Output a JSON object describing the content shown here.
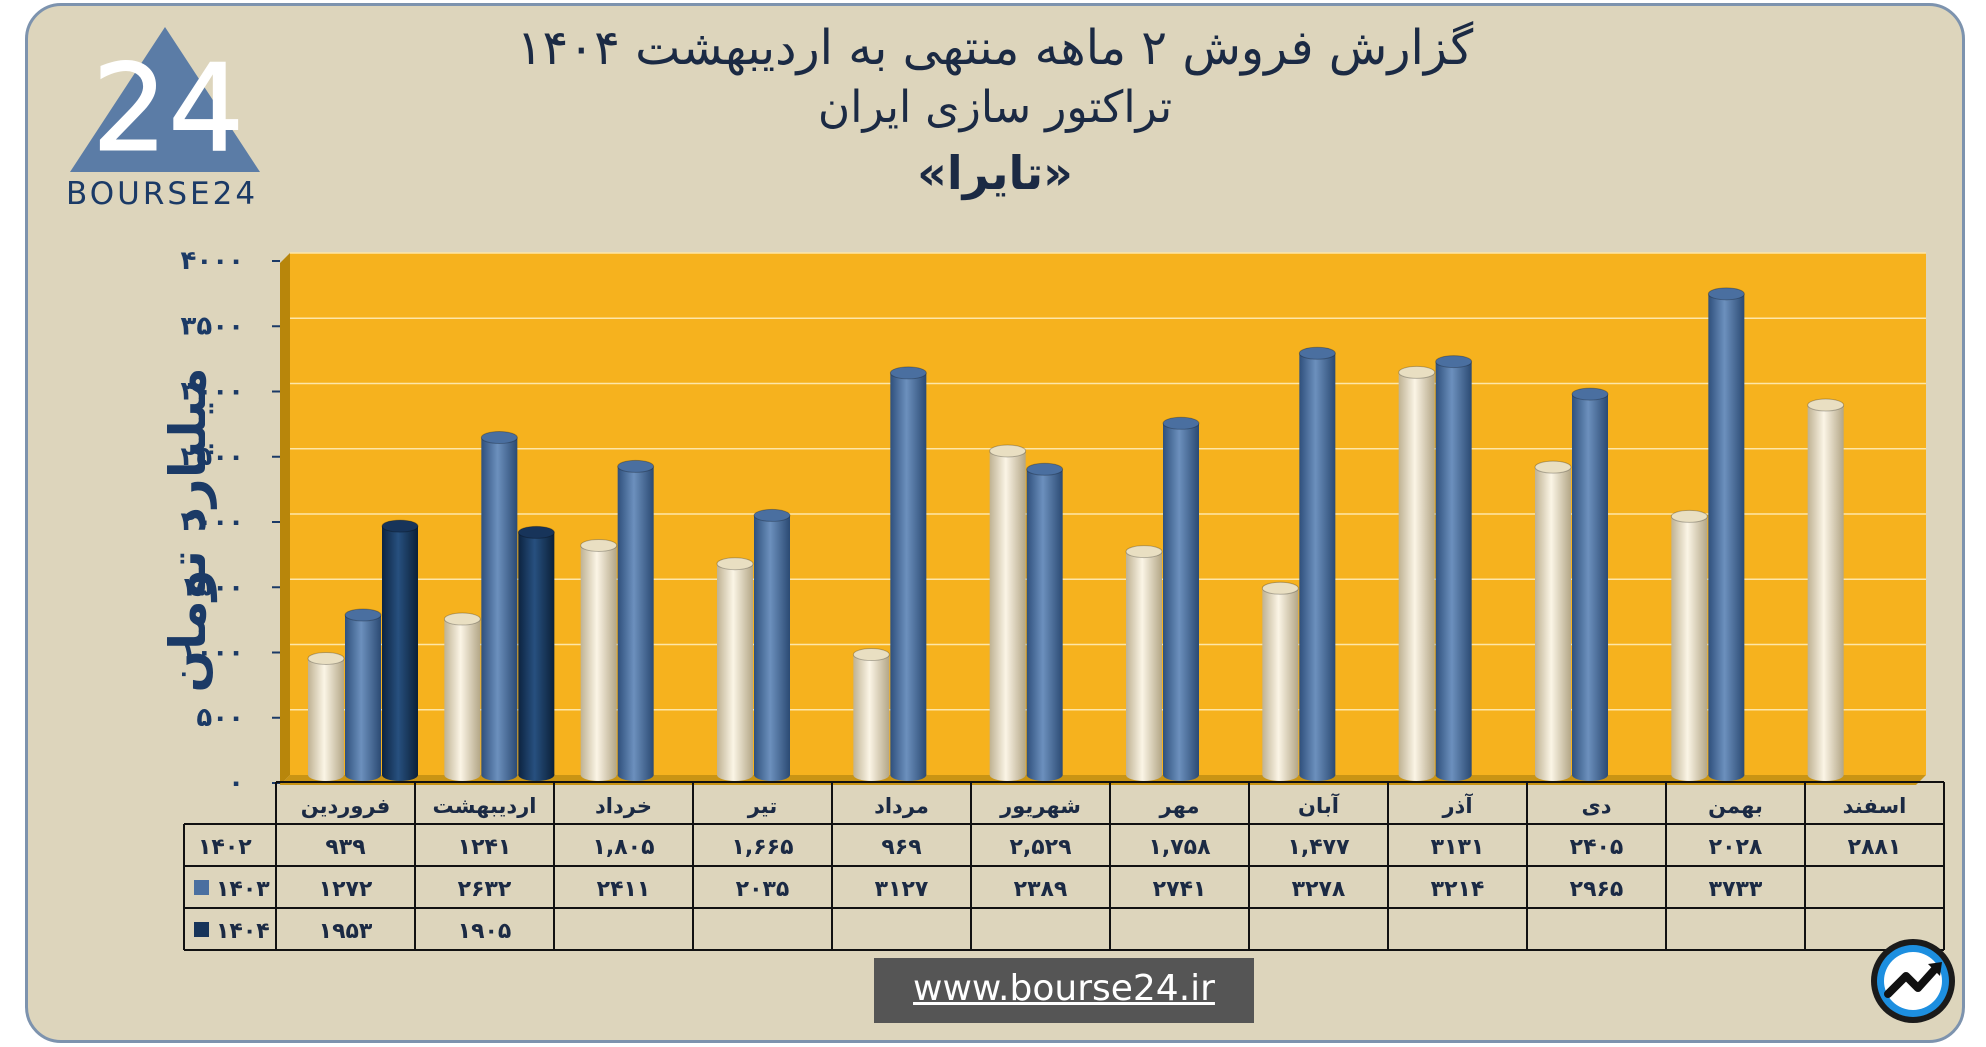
{
  "title": {
    "line1": "گزارش  فروش ۲ ماهه منتهی به اردیبهشت ۱۴۰۴",
    "line2": "تراکتور سازی ایران",
    "line3": "«تایرا»"
  },
  "logo": {
    "text": "BOURSE24",
    "mark": "24"
  },
  "website": "www.bourse24.ir",
  "colors": {
    "background": "#ddd5bc",
    "plot": "#f6b21e",
    "series_1402": "#e9dfc2",
    "series_1403": "#4a6fa0",
    "series_1404": "#17345a",
    "text": "#1b3a66"
  },
  "icons": {
    "logo": "bourse24-triangle-logo",
    "corner": "trend-arrow-circle-icon"
  },
  "chart_data": {
    "type": "bar",
    "ylabel": "میلیارد تومان",
    "ylim": [
      0,
      4000
    ],
    "yticks": [
      0,
      500,
      1000,
      1500,
      2000,
      2500,
      3000,
      3500,
      4000
    ],
    "ytick_labels": [
      "۰",
      "۵۰۰",
      "۱۰۰۰",
      "۱۵۰۰",
      "۲۰۰۰",
      "۲۵۰۰",
      "۳۰۰۰",
      "۳۵۰۰",
      "۴۰۰۰"
    ],
    "grid": true,
    "categories": [
      "فروردین",
      "اردیبهشت",
      "خرداد",
      "تیر",
      "مرداد",
      "شهریور",
      "مهر",
      "آبان",
      "آذر",
      "دی",
      "بهمن",
      "اسفند"
    ],
    "series": [
      {
        "name": "۱۴۰۲",
        "color": "#e9dfc2",
        "values": [
          939,
          1241,
          1805,
          1665,
          969,
          2529,
          1758,
          1477,
          3131,
          2405,
          2028,
          2881
        ],
        "labels": [
          "۹۳۹",
          "۱۲۴۱",
          "۱,۸۰۵",
          "۱,۶۶۵",
          "۹۶۹",
          "۲,۵۲۹",
          "۱,۷۵۸",
          "۱,۴۷۷",
          "۳۱۳۱",
          "۲۴۰۵",
          "۲۰۲۸",
          "۲۸۸۱"
        ]
      },
      {
        "name": "۱۴۰۳",
        "color": "#4a6fa0",
        "values": [
          1272,
          2632,
          2411,
          2035,
          3127,
          2389,
          2741,
          3278,
          3214,
          2965,
          3733,
          null
        ],
        "labels": [
          "۱۲۷۲",
          "۲۶۳۲",
          "۲۴۱۱",
          "۲۰۳۵",
          "۳۱۲۷",
          "۲۳۸۹",
          "۲۷۴۱",
          "۳۲۷۸",
          "۳۲۱۴",
          "۲۹۶۵",
          "۳۷۳۳",
          ""
        ]
      },
      {
        "name": "۱۴۰۴",
        "color": "#17345a",
        "values": [
          1953,
          1905,
          null,
          null,
          null,
          null,
          null,
          null,
          null,
          null,
          null,
          null
        ],
        "labels": [
          "۱۹۵۳",
          "۱۹۰۵",
          "",
          "",
          "",
          "",
          "",
          "",
          "",
          "",
          "",
          ""
        ]
      }
    ]
  }
}
